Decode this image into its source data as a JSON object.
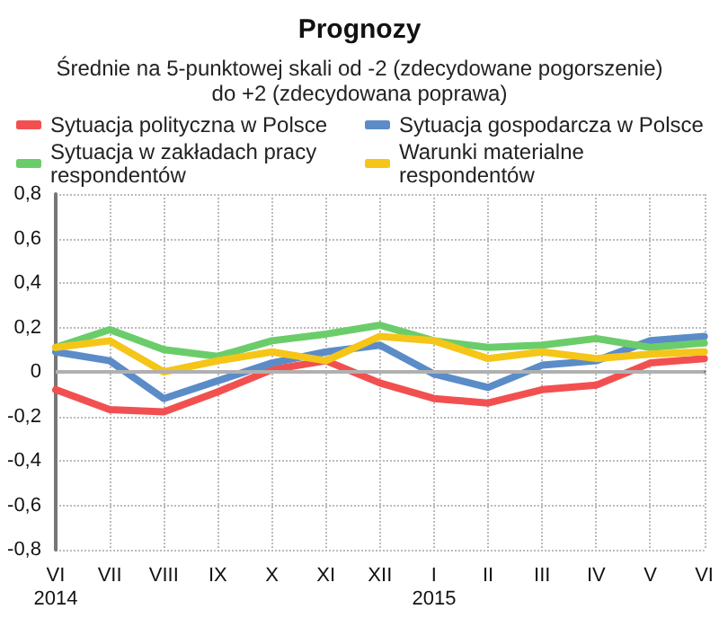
{
  "chart_data": {
    "type": "line",
    "title": "Prognozy",
    "subtitle": "Średnie na 5-punktowej skali od -2 (zdecydowane pogorszenie)\ndo +2 (zdecydowana poprawa)",
    "categories": [
      "VI\n2014",
      "VII",
      "VIII",
      "IX",
      "X",
      "XI",
      "XII",
      "I\n2015",
      "II",
      "III",
      "IV",
      "V",
      "VI"
    ],
    "series": [
      {
        "name": "Sytuacja polityczna w Polsce",
        "color": "#f25050",
        "values": [
          -0.08,
          -0.17,
          -0.18,
          -0.09,
          0.01,
          0.05,
          -0.05,
          -0.12,
          -0.14,
          -0.08,
          -0.06,
          0.04,
          0.06
        ]
      },
      {
        "name": "Sytuacja gospodarcza w Polsce",
        "color": "#5b8cc8",
        "values": [
          0.09,
          0.05,
          -0.12,
          -0.04,
          0.04,
          0.09,
          0.12,
          -0.01,
          -0.07,
          0.03,
          0.05,
          0.14,
          0.16
        ]
      },
      {
        "name": "Sytuacja w zakładach pracy\nrespondentów",
        "color": "#6acd6a",
        "values": [
          0.11,
          0.19,
          0.1,
          0.07,
          0.14,
          0.17,
          0.21,
          0.14,
          0.11,
          0.12,
          0.15,
          0.11,
          0.13
        ]
      },
      {
        "name": "Warunki materialne\nrespondentów",
        "color": "#f5c518",
        "values": [
          0.11,
          0.14,
          0.0,
          0.05,
          0.09,
          0.05,
          0.16,
          0.14,
          0.06,
          0.09,
          0.06,
          0.08,
          0.09
        ]
      }
    ],
    "ylim": [
      -0.8,
      0.8
    ],
    "yticks": [
      {
        "value": -0.8,
        "label": "-0,8"
      },
      {
        "value": -0.6,
        "label": "-0,6"
      },
      {
        "value": -0.4,
        "label": "-0,4"
      },
      {
        "value": -0.2,
        "label": "-0,2"
      },
      0,
      {
        "value": 0.2,
        "label": "0,2"
      },
      {
        "value": 0.4,
        "label": "0,4"
      },
      {
        "value": 0.6,
        "label": "0,6"
      },
      {
        "value": 0.8,
        "label": "0,8"
      }
    ],
    "ref_lines": [
      {
        "axis": "y",
        "value": 0,
        "label": null,
        "color": "#b0b0b0"
      }
    ],
    "grid": true,
    "legend": "top",
    "marker": "none",
    "line_style": "solid"
  }
}
